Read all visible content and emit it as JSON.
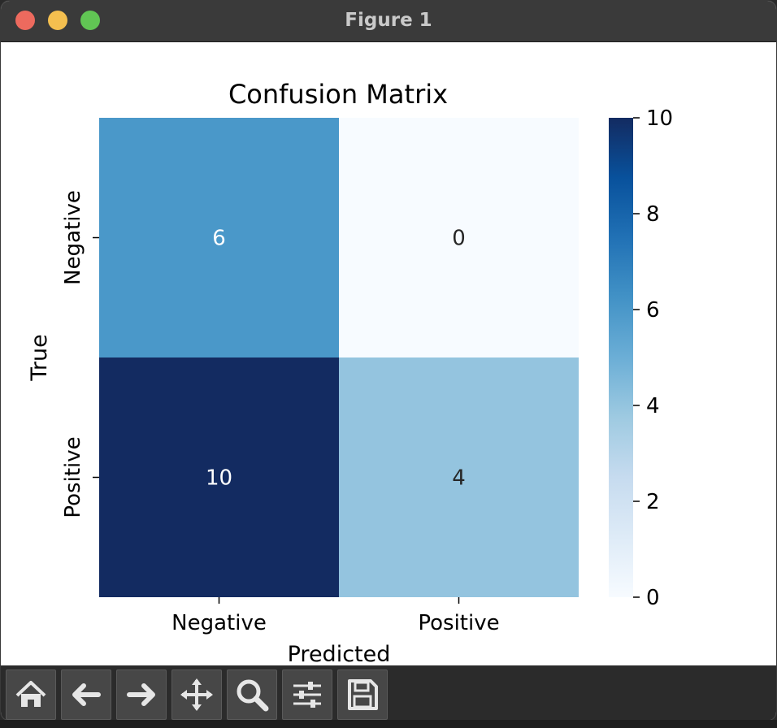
{
  "window": {
    "title": "Figure 1"
  },
  "toolbar": {
    "icons": [
      "home-icon",
      "back-arrow-icon",
      "forward-arrow-icon",
      "pan-move-icon",
      "zoom-magnifier-icon",
      "configure-subplots-icon",
      "save-disk-icon"
    ]
  },
  "chart_data": {
    "type": "heatmap",
    "title": "Confusion Matrix",
    "xlabel": "Predicted",
    "ylabel": "True",
    "x_categories": [
      "Negative",
      "Positive"
    ],
    "y_categories": [
      "Negative",
      "Positive"
    ],
    "matrix": [
      [
        6,
        0
      ],
      [
        10,
        4
      ]
    ],
    "colormap": "Blues",
    "vmin": 0,
    "vmax": 10,
    "colorbar_ticks": [
      0,
      2,
      4,
      6,
      8,
      10
    ],
    "colors": {
      "cmap_low": "#f7fbff",
      "cmap_high": "#132b61",
      "annot_dark": "#262626",
      "annot_light": "#ffffff"
    }
  }
}
